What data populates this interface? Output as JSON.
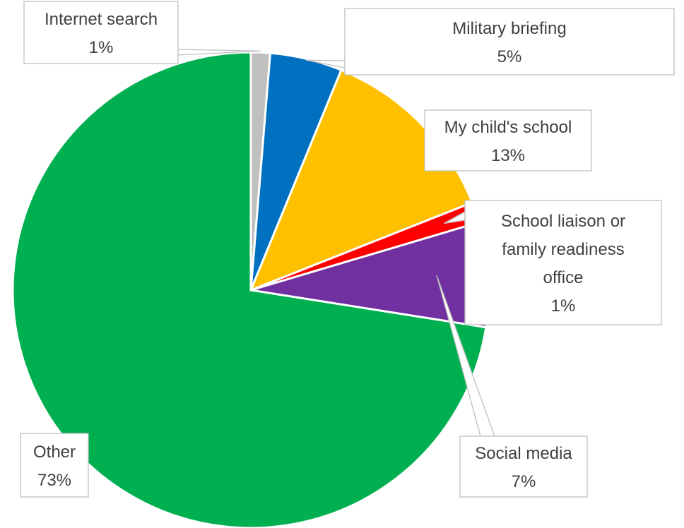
{
  "chart_data": {
    "type": "pie",
    "start_angle_deg": 0,
    "direction": "clockwise",
    "slices": [
      {
        "label": "Internet search",
        "value": 1.3,
        "value_label": "1%",
        "color": "#BFBFBF"
      },
      {
        "label": "Military briefing",
        "value": 4.9,
        "value_label": "5%",
        "color": "#0070C0"
      },
      {
        "label": "My child's school",
        "value": 12.8,
        "value_label": "13%",
        "color": "#FFC000"
      },
      {
        "label": "School liaison or family readiness office",
        "value": 1.4,
        "value_label": "1%",
        "color": "#FF0000"
      },
      {
        "label": "Social media",
        "value": 7.1,
        "value_label": "7%",
        "color": "#7030A0"
      },
      {
        "label": "Other",
        "value": 72.5,
        "value_label": "73%",
        "color": "#00B050"
      }
    ],
    "label_lines": [
      [
        "Internet search",
        "1%"
      ],
      [
        "Military briefing",
        "5%"
      ],
      [
        "My child's school",
        "13%"
      ],
      [
        "School liaison or",
        "family readiness",
        "office",
        "1%"
      ],
      [
        "Social media",
        "7%"
      ],
      [
        "Other",
        "73%"
      ]
    ]
  }
}
